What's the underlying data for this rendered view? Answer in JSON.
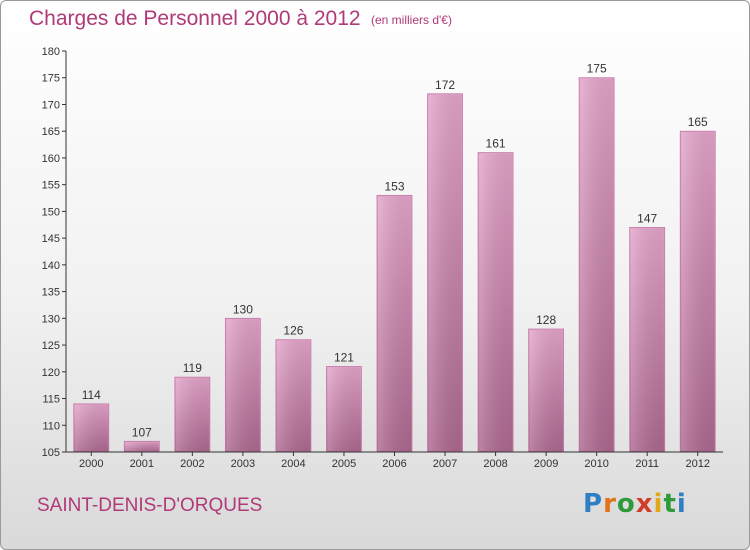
{
  "page": {
    "title": "Charges de Personnel 2000 à 2012",
    "subtitle": "(en milliers d'€)",
    "commune": "SAINT-DENIS-D'ORQUES",
    "logo": {
      "letters": [
        "P",
        "r",
        "o",
        "x",
        "i",
        "t",
        "i"
      ],
      "colors": [
        "#2f7fc4",
        "#e2731b",
        "#2f9a3a",
        "#d23c2b",
        "#e2a81b",
        "#2f9a3a",
        "#2f7fc4"
      ]
    }
  },
  "chart_data": {
    "type": "bar",
    "title": "Charges de Personnel 2000 à 2012",
    "subtitle": "(en milliers d'€)",
    "categories": [
      "2000",
      "2001",
      "2002",
      "2003",
      "2004",
      "2005",
      "2006",
      "2007",
      "2008",
      "2009",
      "2010",
      "2011",
      "2012"
    ],
    "values": [
      114,
      107,
      119,
      130,
      126,
      121,
      153,
      172,
      161,
      128,
      175,
      147,
      165
    ],
    "ylim": [
      105,
      180
    ],
    "yticks": [
      105,
      110,
      115,
      120,
      125,
      130,
      135,
      140,
      145,
      150,
      155,
      160,
      165,
      170,
      175,
      180
    ],
    "grid": false,
    "bar_color": "#d98fbd",
    "bar_color_dark": "#b3698f"
  }
}
